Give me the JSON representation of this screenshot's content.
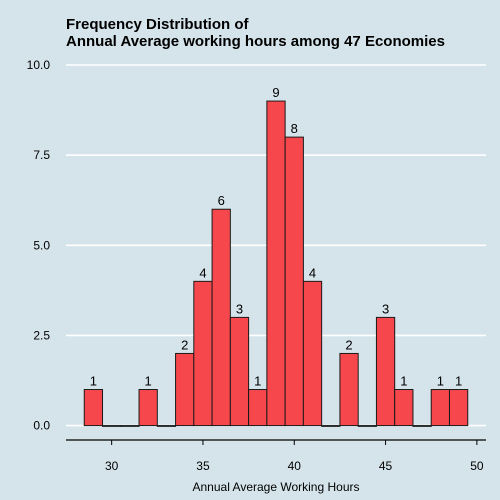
{
  "chart_data": {
    "type": "bar",
    "title_line1": "Frequency Distribution of",
    "title_line2": "Annual Average working hours among 47 Economies",
    "xlabel": "Annual Average Working Hours",
    "ylabel": "",
    "xlim": [
      27.5,
      50.5
    ],
    "ylim": [
      -0.4,
      10.0
    ],
    "xticks": [
      30,
      35,
      40,
      45,
      50
    ],
    "yticks": [
      0.0,
      2.5,
      5.0,
      7.5,
      10.0
    ],
    "ytick_labels": [
      "0.0",
      "2.5",
      "5.0",
      "7.5",
      "10.0"
    ],
    "bin_width": 1,
    "bins": [
      {
        "x": 29,
        "count": 1
      },
      {
        "x": 30,
        "count": 0
      },
      {
        "x": 31,
        "count": 0
      },
      {
        "x": 32,
        "count": 1
      },
      {
        "x": 33,
        "count": 0
      },
      {
        "x": 34,
        "count": 2
      },
      {
        "x": 35,
        "count": 4
      },
      {
        "x": 36,
        "count": 6
      },
      {
        "x": 37,
        "count": 3
      },
      {
        "x": 38,
        "count": 1
      },
      {
        "x": 39,
        "count": 9
      },
      {
        "x": 40,
        "count": 8
      },
      {
        "x": 41,
        "count": 4
      },
      {
        "x": 42,
        "count": 0
      },
      {
        "x": 43,
        "count": 2
      },
      {
        "x": 44,
        "count": 0
      },
      {
        "x": 45,
        "count": 3
      },
      {
        "x": 46,
        "count": 1
      },
      {
        "x": 47,
        "count": 0
      },
      {
        "x": 48,
        "count": 1
      },
      {
        "x": 49,
        "count": 1
      }
    ],
    "colors": {
      "bar_fill": "#f5474c",
      "bar_stroke": "#1a1a1a",
      "background": "#d5e4eb",
      "grid": "#ffffff"
    }
  }
}
